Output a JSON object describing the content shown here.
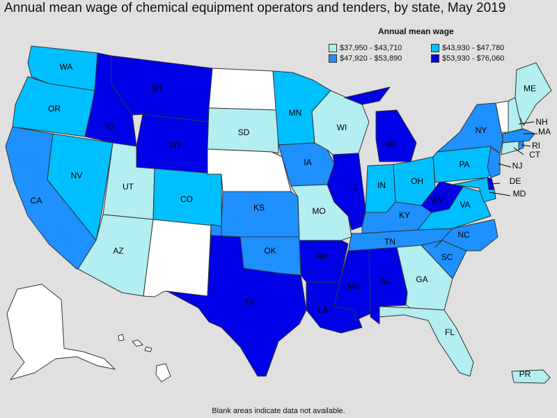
{
  "title": "Annual mean wage of chemical equipment operators and tenders, by state, May 2019",
  "legend": {
    "title": "Annual mean wage",
    "bins": [
      {
        "range": "$37,950 - $43,710",
        "color": "#b3eef0"
      },
      {
        "range": "$43,930 - $47,780",
        "color": "#00bfff"
      },
      {
        "range": "$47,920 - $53,890",
        "color": "#1e90ff"
      },
      {
        "range": "$53,930 - $76,060",
        "color": "#0000e6"
      }
    ],
    "no_data_color": "#ffffff"
  },
  "footnote": "Blank areas indicate data not available.",
  "states": {
    "WA": 1,
    "OR": 1,
    "CA": 2,
    "NV": 1,
    "ID": 3,
    "MT": 3,
    "WY": 3,
    "UT": 0,
    "AZ": 0,
    "NM": null,
    "CO": 1,
    "ND": null,
    "SD": 0,
    "NE": null,
    "KS": 2,
    "OK": 2,
    "TX": 3,
    "MN": 1,
    "IA": 2,
    "MO": 0,
    "AR": 3,
    "LA": 3,
    "WI": 0,
    "IL": 3,
    "MI": 3,
    "IN": 1,
    "OH": 1,
    "KY": 2,
    "TN": 2,
    "MS": 3,
    "AL": 3,
    "GA": 0,
    "FL": 0,
    "SC": 2,
    "NC": 2,
    "VA": 1,
    "WV": 3,
    "PA": 1,
    "NY": 2,
    "ME": 0,
    "VT": null,
    "NH": 0,
    "MA": 2,
    "RI": 2,
    "CT": 0,
    "NJ": 2,
    "DE": 3,
    "MD": 1,
    "AK": null,
    "HI": null,
    "PR": 0
  },
  "labels": [
    "WA",
    "OR",
    "CA",
    "NV",
    "ID",
    "MT",
    "WY",
    "UT",
    "AZ",
    "CO",
    "SD",
    "KS",
    "OK",
    "TX",
    "MN",
    "IA",
    "MO",
    "AR",
    "LA",
    "WI",
    "IL",
    "MI",
    "IN",
    "OH",
    "KY",
    "TN",
    "MS",
    "AL",
    "GA",
    "FL",
    "SC",
    "NC",
    "VA",
    "WV",
    "PA",
    "NY",
    "ME",
    "NH",
    "MA",
    "RI",
    "CT",
    "NJ",
    "DE",
    "MD",
    "PR"
  ]
}
